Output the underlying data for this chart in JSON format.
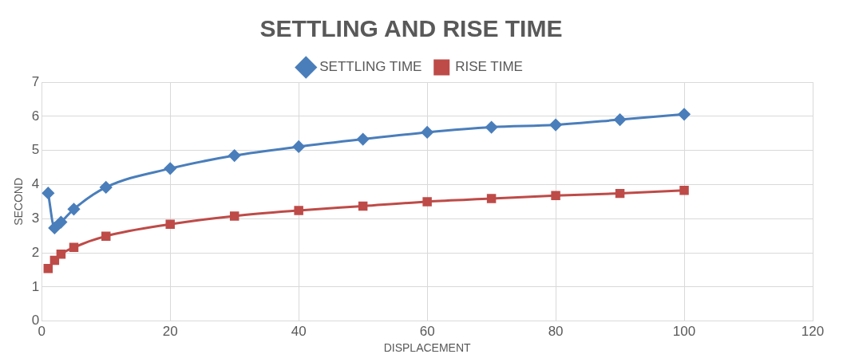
{
  "chart_data": {
    "type": "line",
    "title": "SETTLING AND RISE TIME",
    "xlabel": "DISPLACEMENT",
    "ylabel": "SECOND",
    "x": [
      1,
      2,
      3,
      5,
      10,
      20,
      30,
      40,
      50,
      60,
      70,
      80,
      90,
      100
    ],
    "series": [
      {
        "name": "SETTLING TIME",
        "color": "#4a7ebb",
        "marker": "diamond",
        "values": [
          3.75,
          2.73,
          2.9,
          3.28,
          3.92,
          4.47,
          4.85,
          5.11,
          5.33,
          5.53,
          5.68,
          5.75,
          5.9,
          6.06
        ]
      },
      {
        "name": "RISE TIME",
        "color": "#be4b48",
        "marker": "square",
        "values": [
          1.54,
          1.78,
          1.96,
          2.16,
          2.49,
          2.84,
          3.08,
          3.24,
          3.37,
          3.5,
          3.59,
          3.68,
          3.74,
          3.83
        ]
      }
    ],
    "xlim": [
      0,
      120
    ],
    "xticks": [
      0,
      20,
      40,
      60,
      80,
      100,
      120
    ],
    "ylim": [
      0,
      7
    ],
    "yticks": [
      0,
      1,
      2,
      3,
      4,
      5,
      6,
      7
    ],
    "grid": true,
    "legend": "top",
    "line_style": "solid"
  }
}
